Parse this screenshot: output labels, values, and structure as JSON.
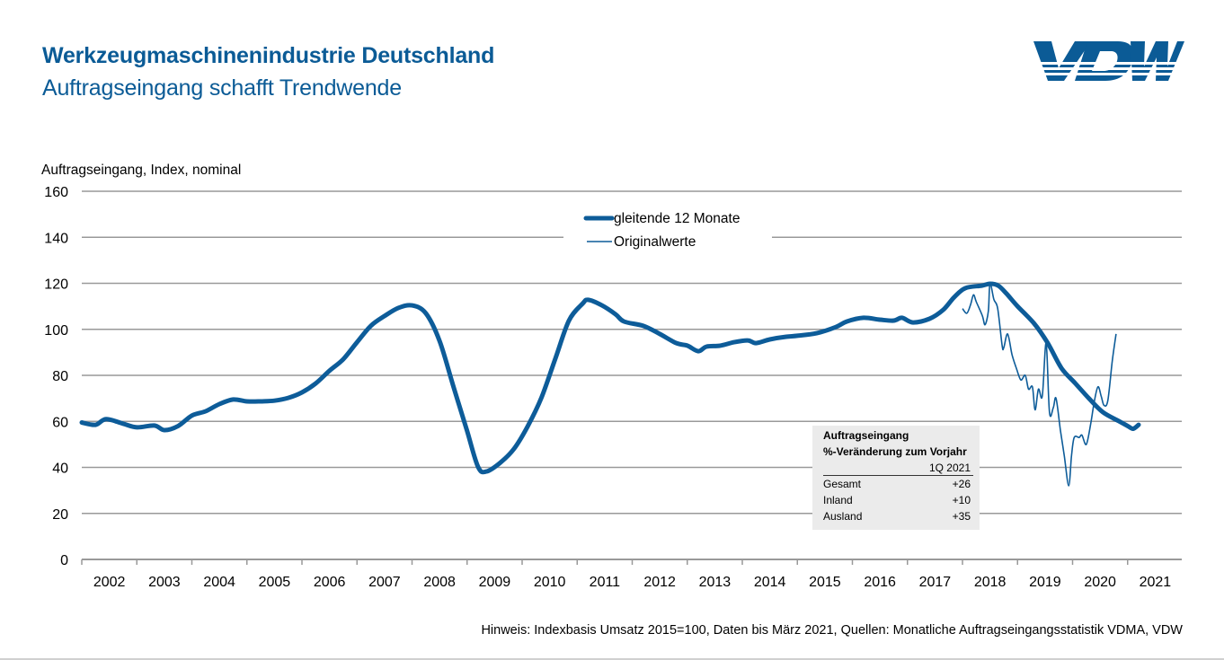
{
  "header": {
    "title": "Werkzeugmaschinenindustrie Deutschland",
    "subtitle": "Auftragseingang schafft Trendwende",
    "logo_text": "VDW",
    "logo_icon": "vdw-logo"
  },
  "footnote": "Hinweis: Indexbasis Umsatz 2015=100, Daten bis März 2021, Quellen: Monatliche Auftragseingangsstatistik VDMA, VDW",
  "colors": {
    "brand": "#0b5b96",
    "series": "#0d5c99",
    "grid": "#999999",
    "infobox_bg": "#ebebeb"
  },
  "infobox": {
    "heading1": "Auftragseingang",
    "heading2": "%-Veränderung zum Vorjahr",
    "period": "1Q 2021",
    "rows": [
      {
        "label": "Gesamt",
        "value": "+26"
      },
      {
        "label": "Inland",
        "value": "+10"
      },
      {
        "label": "Ausland",
        "value": "+35"
      }
    ]
  },
  "chart_data": {
    "type": "line",
    "title": "Werkzeugmaschinenindustrie Deutschland – Auftragseingang schafft Trendwende",
    "xlabel": "",
    "ylabel": "Auftragseingang, Index, nominal",
    "ylim": [
      0,
      160
    ],
    "yticks": [
      0,
      20,
      40,
      60,
      80,
      100,
      120,
      140,
      160
    ],
    "xlim": [
      2002,
      2022
    ],
    "xtick_labels": [
      "2002",
      "2003",
      "2004",
      "2005",
      "2006",
      "2007",
      "2008",
      "2009",
      "2010",
      "2011",
      "2012",
      "2013",
      "2014",
      "2015",
      "2016",
      "2017",
      "2018",
      "2019",
      "2020",
      "2021"
    ],
    "grid": true,
    "legend": {
      "placement": "top-center",
      "entries": [
        {
          "label": "gleitende 12 Monate",
          "style": "thick"
        },
        {
          "label": "Originalwerte",
          "style": "thin"
        }
      ]
    },
    "series": [
      {
        "name": "gleitende 12 Monate",
        "x": [
          2002.0,
          2002.25,
          2002.44,
          2002.75,
          2003.0,
          2003.32,
          2003.5,
          2003.75,
          2004.0,
          2004.25,
          2004.5,
          2004.75,
          2005.0,
          2005.25,
          2005.5,
          2005.75,
          2006.0,
          2006.25,
          2006.5,
          2006.75,
          2007.0,
          2007.25,
          2007.5,
          2007.75,
          2008.0,
          2008.25,
          2008.5,
          2008.75,
          2009.0,
          2009.2,
          2009.35,
          2009.6,
          2009.85,
          2010.1,
          2010.35,
          2010.6,
          2010.85,
          2011.1,
          2011.2,
          2011.45,
          2011.7,
          2011.85,
          2012.2,
          2012.5,
          2012.8,
          2013.0,
          2013.2,
          2013.35,
          2013.6,
          2013.85,
          2014.1,
          2014.25,
          2014.5,
          2014.8,
          2015.0,
          2015.35,
          2015.7,
          2015.9,
          2016.2,
          2016.5,
          2016.75,
          2016.9,
          2017.1,
          2017.4,
          2017.65,
          2017.85,
          2018.05,
          2018.35,
          2018.5,
          2018.65,
          2018.8,
          2019.0,
          2019.3,
          2019.55,
          2019.8,
          2020.05,
          2020.3,
          2020.55,
          2020.85,
          2021.0,
          2021.1,
          2021.2
        ],
        "values": [
          59.5,
          58.5,
          61,
          59,
          57.4,
          58.2,
          56.2,
          58,
          62.5,
          64.4,
          67.5,
          69.5,
          68.7,
          68.7,
          69,
          70.2,
          72.6,
          76.5,
          82,
          87,
          94.4,
          101.5,
          105.8,
          109.3,
          110.4,
          107,
          95,
          75.3,
          55.8,
          40.2,
          38.2,
          42,
          48,
          57.8,
          70.2,
          87,
          103.8,
          111.2,
          112.8,
          110.4,
          106.5,
          103.4,
          101.5,
          98,
          94,
          92.9,
          90.5,
          92.5,
          92.9,
          94.4,
          95.2,
          94,
          95.6,
          96.8,
          97.2,
          98.3,
          101,
          103.4,
          105,
          104.2,
          103.8,
          105,
          103,
          104.6,
          108.5,
          114,
          117.9,
          119,
          119.8,
          119,
          115.5,
          110,
          102.6,
          94,
          83.1,
          76.5,
          69.9,
          64,
          60,
          58,
          56.8,
          58.5
        ]
      },
      {
        "name": "Originalwerte",
        "x": [
          2018.0,
          2018.08,
          2018.15,
          2018.2,
          2018.25,
          2018.36,
          2018.41,
          2018.47,
          2018.5,
          2018.57,
          2018.64,
          2018.72,
          2018.75,
          2018.82,
          2018.9,
          2018.98,
          2019.06,
          2019.14,
          2019.2,
          2019.27,
          2019.32,
          2019.38,
          2019.45,
          2019.52,
          2019.58,
          2019.65,
          2019.7,
          2019.78,
          2019.85,
          2019.93,
          2019.98,
          2020.03,
          2020.12,
          2020.17,
          2020.25,
          2020.33,
          2020.39,
          2020.46,
          2020.52,
          2020.57,
          2020.64,
          2020.72,
          2020.79
        ],
        "values": [
          109,
          107,
          111,
          115,
          112,
          106,
          102,
          108,
          120,
          113,
          109,
          93,
          92,
          98,
          89,
          83,
          78,
          80,
          74,
          75,
          65,
          74,
          71,
          94,
          64,
          66,
          70,
          56,
          45,
          32,
          45,
          53,
          53,
          54,
          50,
          59,
          68,
          75,
          71,
          67,
          69,
          86,
          98
        ]
      }
    ]
  }
}
